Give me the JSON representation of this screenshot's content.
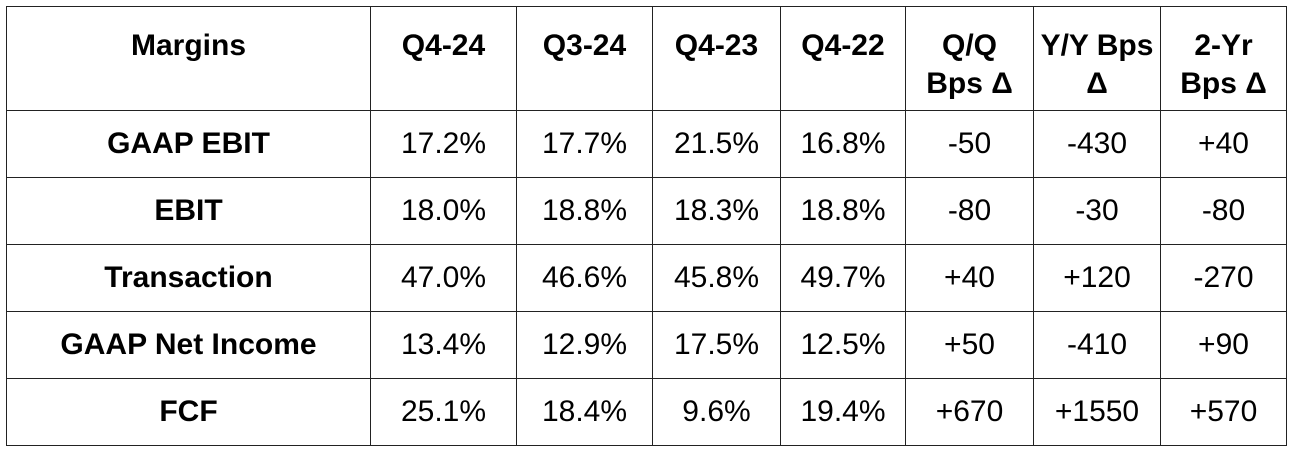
{
  "table": {
    "header": [
      "Margins",
      "Q4-24",
      "Q3-24",
      "Q4-23",
      "Q4-22",
      "Q/Q Bps Δ",
      "Y/Y Bps Δ",
      "2-Yr Bps Δ"
    ],
    "rows": [
      [
        "GAAP EBIT",
        "17.2%",
        "17.7%",
        "21.5%",
        "16.8%",
        "-50",
        "-430",
        "+40"
      ],
      [
        "EBIT",
        "18.0%",
        "18.8%",
        "18.3%",
        "18.8%",
        "-80",
        "-30",
        "-80"
      ],
      [
        "Transaction",
        "47.0%",
        "46.6%",
        "45.8%",
        "49.7%",
        "+40",
        "+120",
        "-270"
      ],
      [
        "GAAP Net Income",
        "13.4%",
        "12.9%",
        "17.5%",
        "12.5%",
        "+50",
        "-410",
        "+90"
      ],
      [
        "FCF",
        "25.1%",
        "18.4%",
        "9.6%",
        "19.4%",
        "+670",
        "+1550",
        "+570"
      ]
    ]
  }
}
